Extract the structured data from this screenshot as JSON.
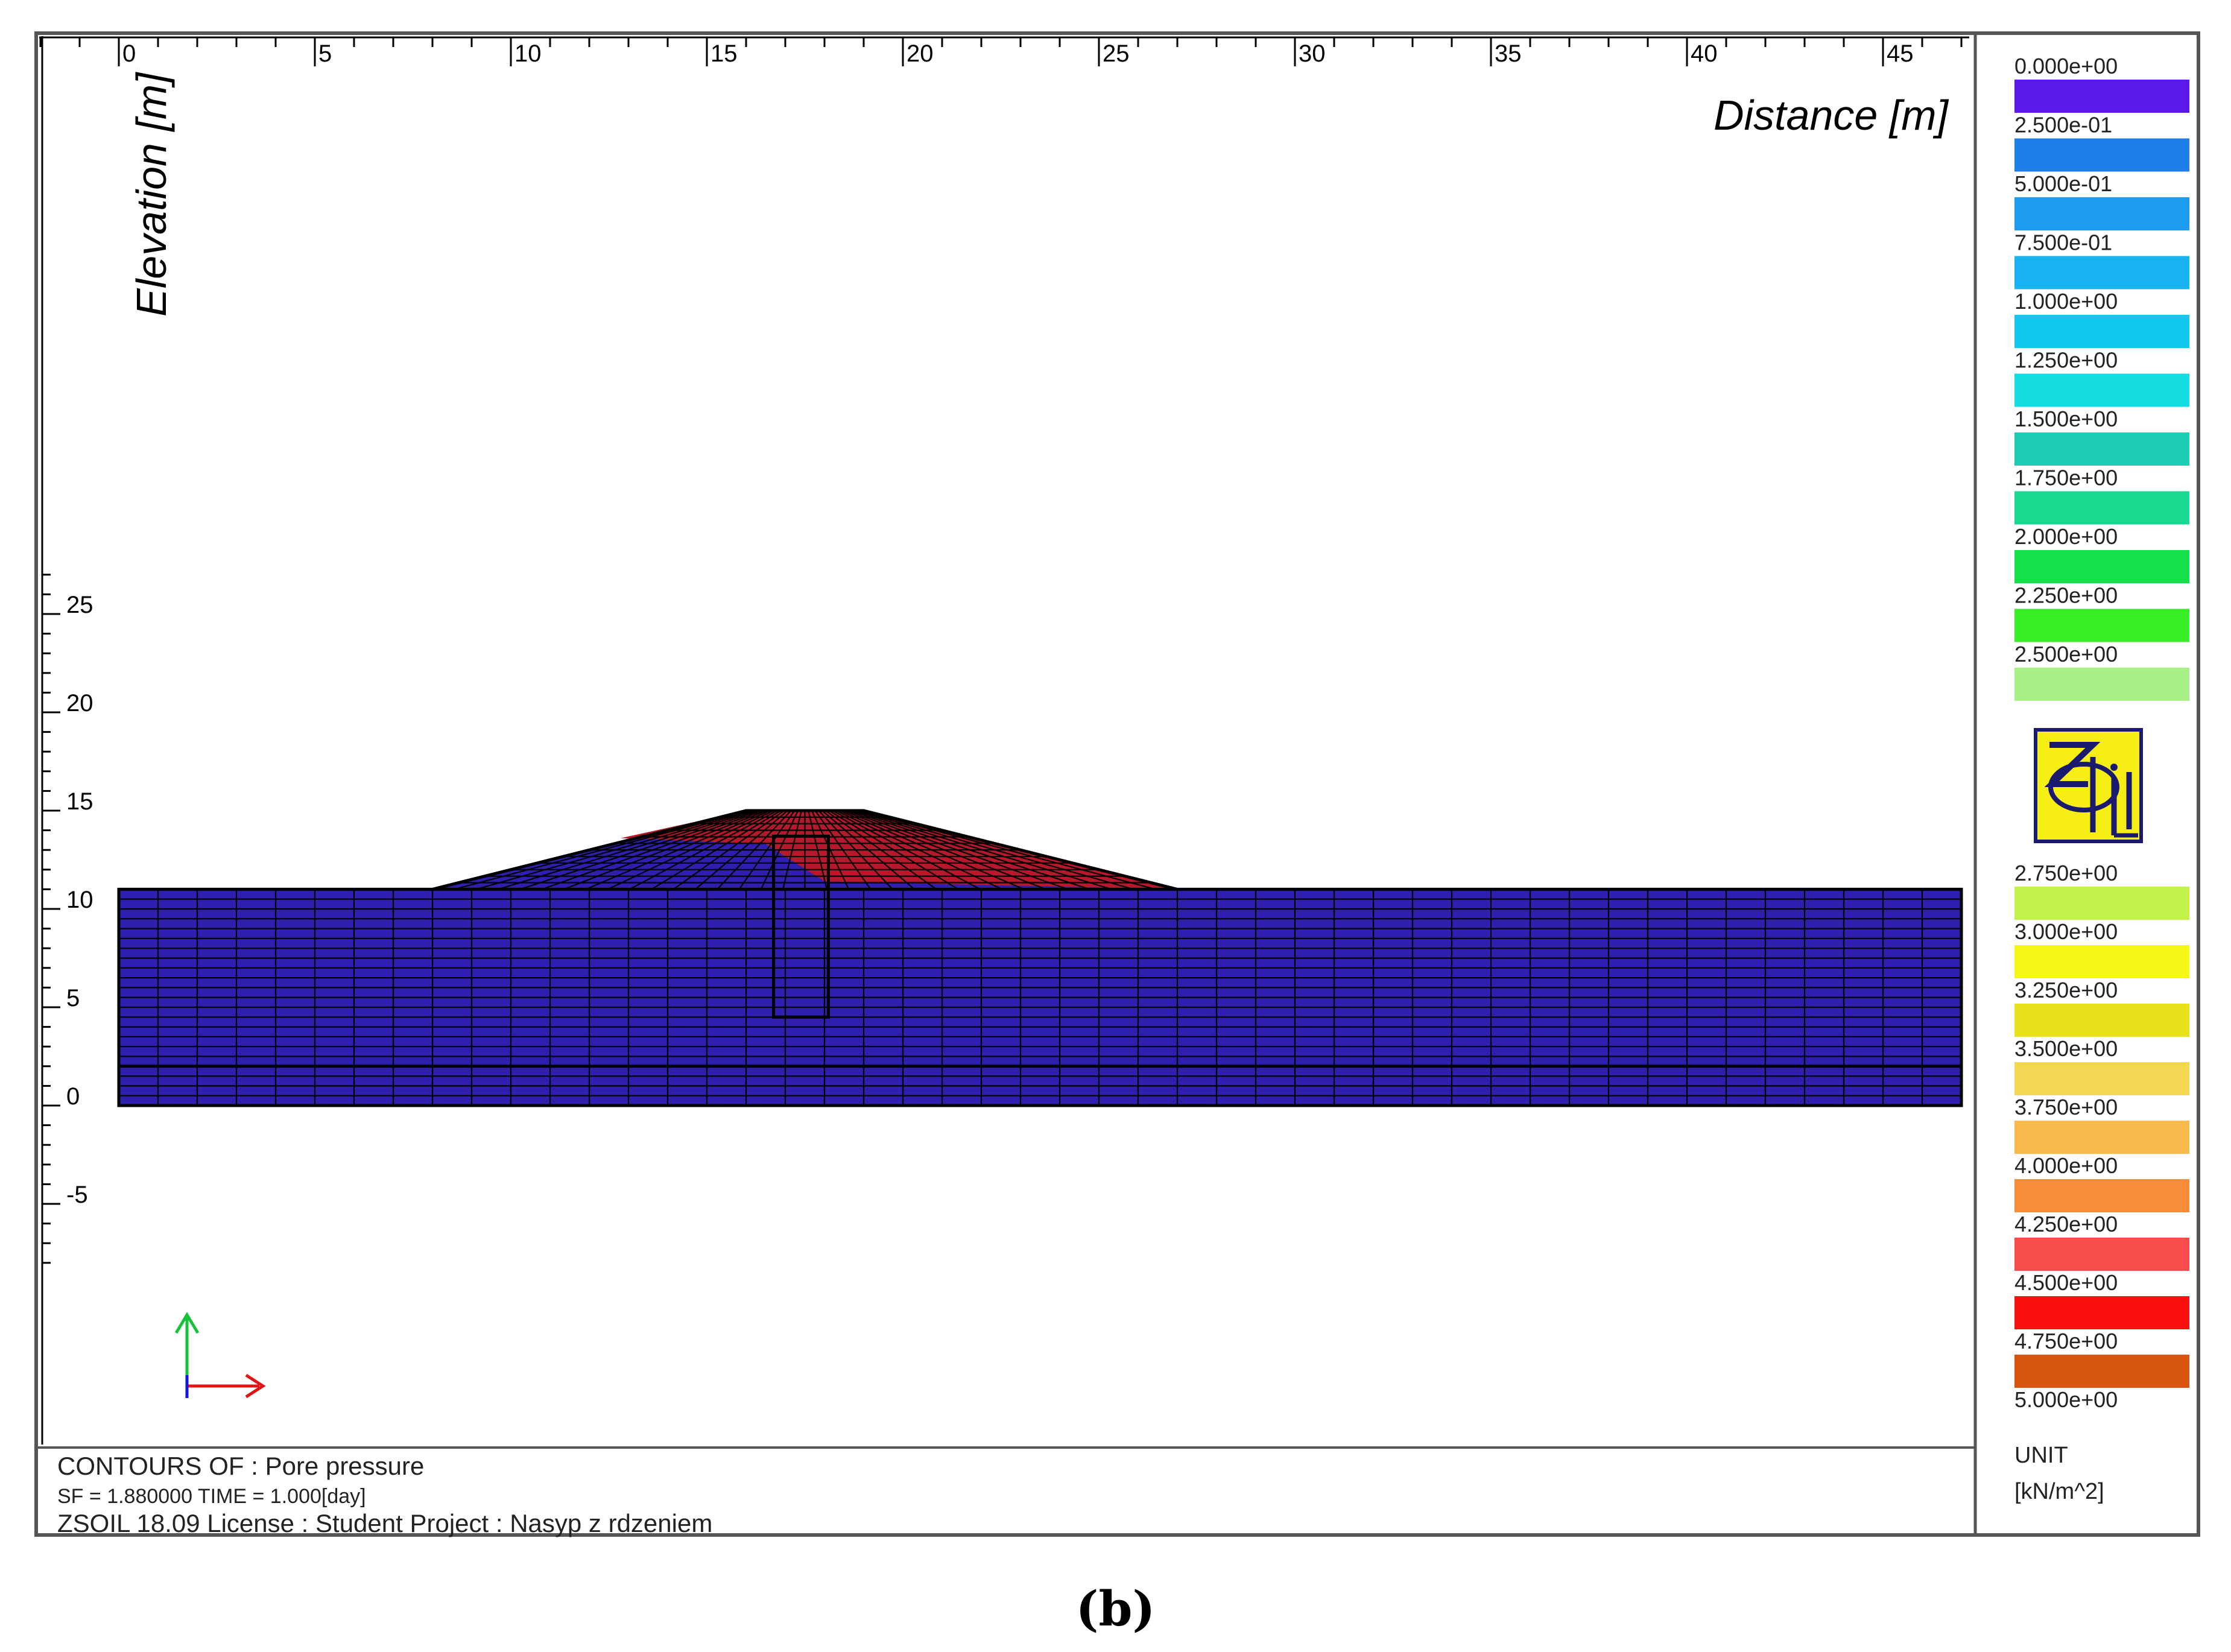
{
  "title": "Pore pressure",
  "info": {
    "contours_line": "CONTOURS OF : Pore pressure",
    "sf_time_line": "SF = 1.880000   TIME = 1.000[day]",
    "license_line": "ZSOIL 18.09   License :  Student   Project : Nasyp z rdzeniem"
  },
  "axes": {
    "x_label": "Distance [m]",
    "y_label": "Elevation [m]",
    "x_ticks": [
      "0",
      "5",
      "10",
      "15",
      "20",
      "25",
      "30",
      "35",
      "40",
      "45"
    ],
    "x_tick_values": [
      0,
      5,
      10,
      15,
      20,
      25,
      30,
      35,
      40,
      45
    ],
    "y_ticks": [
      "25",
      "20",
      "15",
      "10",
      "5",
      "0",
      "-5"
    ],
    "y_tick_values": [
      25,
      20,
      15,
      10,
      5,
      0,
      -5
    ],
    "x_range": [
      -2,
      47.5
    ],
    "y_range": [
      -8.5,
      27
    ]
  },
  "legend": {
    "labels": [
      "0.000e+00",
      "2.500e-01",
      "5.000e-01",
      "7.500e-01",
      "1.000e+00",
      "1.250e+00",
      "1.500e+00",
      "1.750e+00",
      "2.000e+00",
      "2.250e+00",
      "2.500e+00",
      "2.750e+00",
      "3.000e+00",
      "3.250e+00",
      "3.500e+00",
      "3.750e+00",
      "4.000e+00",
      "4.250e+00",
      "4.500e+00",
      "4.750e+00",
      "5.000e+00"
    ],
    "colors": [
      "#5a19e8",
      "#1f7fe8",
      "#1e9cf0",
      "#17b2f0",
      "#12c8ee",
      "#13dde0",
      "#1ecbb5",
      "#19d990",
      "#15e04a",
      "#39ee27",
      "#a8f088",
      "#c2f24a",
      "#f5f516",
      "#eae01c",
      "#f3d651",
      "#f8ba4a",
      "#f98c3b",
      "#f84c4c",
      "#fa1010",
      "#d85510"
    ],
    "unit_label": "UNIT",
    "unit_value": "[kN/m^2]"
  },
  "logo_text": "ZSoil",
  "caption": "(b)",
  "model": {
    "foundation_x": [
      0,
      47
    ],
    "foundation_y": [
      0,
      11
    ],
    "layer_boundary_y": 2,
    "embankment": {
      "base_left_x": 8,
      "base_right_x": 27,
      "crest_left_x": 16,
      "crest_right_x": 19,
      "crest_y": 15
    },
    "core": {
      "x": [
        16.7,
        18.1
      ],
      "y": [
        4.5,
        13.7
      ]
    },
    "colors": {
      "soil": "#2e1fae",
      "saturated": "#b5192b",
      "mesh": "#000000"
    }
  }
}
